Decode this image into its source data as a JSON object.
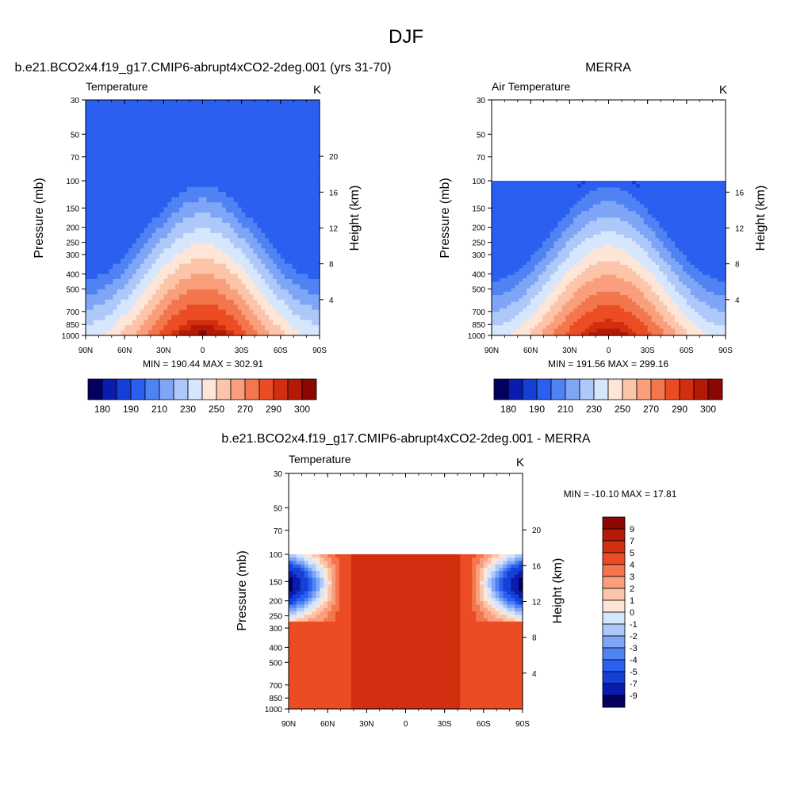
{
  "page_title": "DJF",
  "colormaps": {
    "abs": [
      "#04005f",
      "#0a1cad",
      "#1540d6",
      "#2a5ff0",
      "#4f83f4",
      "#7ea5f6",
      "#aec8f9",
      "#d6e6fc",
      "#fde5d8",
      "#fcc4a8",
      "#f99f7d",
      "#f3764d",
      "#eb4c24",
      "#d22f10",
      "#b41a06",
      "#8c0702"
    ],
    "diff": [
      "#04005f",
      "#0a1cad",
      "#1540d6",
      "#2a5ff0",
      "#4f83f4",
      "#7ea5f6",
      "#aec8f9",
      "#d6e6fc",
      "#fde5d8",
      "#fcc4a8",
      "#f99f7d",
      "#f3764d",
      "#eb4c24",
      "#d22f10",
      "#b41a06",
      "#8c0702"
    ]
  },
  "chart_data": [
    {
      "type": "heatmap",
      "title": "b.e21.BCO2x4.f19_g17.CMIP6-abrupt4xCO2-2deg.001 (yrs 31-70)",
      "left_string": "Temperature",
      "right_string": "K",
      "ylabel": "Pressure (mb)",
      "y2label": "Height (km)",
      "x_ticks": [
        "90N",
        "60N",
        "30N",
        "0",
        "30S",
        "60S",
        "90S"
      ],
      "y_ticks": [
        "30",
        "50",
        "70",
        "100",
        "150",
        "200",
        "250",
        "300",
        "400",
        "500",
        "700",
        "850",
        "1000"
      ],
      "y2_ticks": [
        "20",
        "16",
        "12",
        "8",
        "4"
      ],
      "stats": "MIN = 190.44  MAX = 302.91",
      "ylim": [
        1000,
        30
      ],
      "xlim": [
        90,
        -90
      ],
      "colorbar_labels": [
        "180",
        "190",
        "210",
        "230",
        "250",
        "270",
        "290",
        "300"
      ],
      "levels": [
        175,
        180,
        185,
        190,
        200,
        210,
        220,
        230,
        240,
        250,
        260,
        270,
        280,
        290,
        295,
        300,
        305
      ],
      "min": 190.44,
      "max": 302.91,
      "data_top_pressure": 30
    },
    {
      "type": "heatmap",
      "title": "MERRA",
      "left_string": "Air Temperature",
      "right_string": "K",
      "ylabel": "Pressure (mb)",
      "y2label": "Height (km)",
      "x_ticks": [
        "90N",
        "60N",
        "30N",
        "0",
        "30S",
        "60S",
        "90S"
      ],
      "y_ticks": [
        "30",
        "50",
        "70",
        "100",
        "150",
        "200",
        "250",
        "300",
        "400",
        "500",
        "700",
        "850",
        "1000"
      ],
      "y2_ticks": [
        "16",
        "12",
        "8",
        "4"
      ],
      "stats": "MIN = 191.56  MAX = 299.16",
      "ylim": [
        1000,
        30
      ],
      "xlim": [
        90,
        -90
      ],
      "colorbar_labels": [
        "180",
        "190",
        "210",
        "230",
        "250",
        "270",
        "290",
        "300"
      ],
      "levels": [
        175,
        180,
        185,
        190,
        200,
        210,
        220,
        230,
        240,
        250,
        260,
        270,
        280,
        290,
        295,
        300,
        305
      ],
      "min": 191.56,
      "max": 299.16,
      "data_top_pressure": 100
    },
    {
      "type": "heatmap",
      "title": "b.e21.BCO2x4.f19_g17.CMIP6-abrupt4xCO2-2deg.001 - MERRA",
      "left_string": "Temperature",
      "right_string": "K",
      "ylabel": "Pressure (mb)",
      "y2label": "Height (km)",
      "x_ticks": [
        "90N",
        "60N",
        "30N",
        "0",
        "30S",
        "60S",
        "90S"
      ],
      "y_ticks": [
        "30",
        "50",
        "70",
        "100",
        "150",
        "200",
        "250",
        "300",
        "400",
        "500",
        "700",
        "850",
        "1000"
      ],
      "y2_ticks": [
        "20",
        "16",
        "12",
        "8",
        "4"
      ],
      "stats": "MIN = -10.10  MAX =  17.81",
      "ylim": [
        1000,
        30
      ],
      "xlim": [
        90,
        -90
      ],
      "colorbar_labels": [
        "9",
        "7",
        "5",
        "4",
        "3",
        "2",
        "1",
        "0",
        "-1",
        "-2",
        "-3",
        "-4",
        "-5",
        "-7",
        "-9"
      ],
      "levels": [
        -11,
        -9,
        -7,
        -5,
        -4,
        -3,
        -2,
        -1,
        0,
        1,
        2,
        3,
        4,
        5,
        7,
        9,
        11
      ],
      "min": -10.1,
      "max": 17.81,
      "data_top_pressure": 100
    }
  ]
}
